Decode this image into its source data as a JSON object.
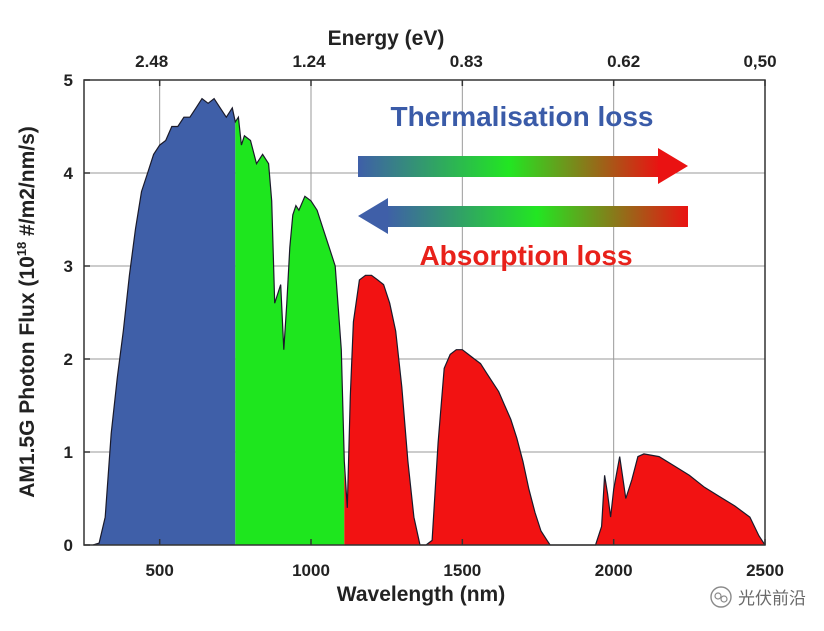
{
  "chart_data": {
    "type": "area",
    "title": "",
    "xlabel": "Wavelength (nm)",
    "ylabel_main": "AM1.5G Photon Flux (10",
    "ylabel_sup": "18",
    "ylabel_unit": " #/m2/nm/s)",
    "top_axis_label": "Energy (eV)",
    "xlim": [
      250,
      2500
    ],
    "ylim": [
      0,
      5
    ],
    "x_ticks": [
      500,
      1000,
      1500,
      2000,
      2500
    ],
    "x_tick_labels": [
      "500",
      "1000",
      "1500",
      "2000",
      "2500"
    ],
    "y_ticks": [
      0,
      1,
      2,
      3,
      4,
      5
    ],
    "y_tick_labels": [
      "0",
      "1",
      "2",
      "3",
      "4",
      "5"
    ],
    "top_ticks": [
      {
        "label": "2.48",
        "wavelength": 500
      },
      {
        "label": "1.24",
        "wavelength": 1000
      },
      {
        "label": "0.83",
        "wavelength": 1500
      },
      {
        "label": "0.62",
        "wavelength": 2000
      },
      {
        "label": "0,50",
        "wavelength": 2500
      }
    ],
    "grid": true,
    "regions": [
      {
        "name": "thermalisation-region",
        "color": "#3f5fa8",
        "x_range": [
          280,
          750
        ]
      },
      {
        "name": "usable-region",
        "color": "#1ee61e",
        "x_range": [
          750,
          1110
        ]
      },
      {
        "name": "absorption-region",
        "color": "#f21212",
        "x_range": [
          1110,
          2500
        ]
      }
    ],
    "spectrum": {
      "x": [
        280,
        300,
        320,
        340,
        360,
        380,
        400,
        420,
        440,
        460,
        480,
        500,
        520,
        540,
        560,
        580,
        600,
        620,
        640,
        660,
        680,
        700,
        720,
        740,
        750,
        760,
        770,
        780,
        800,
        820,
        840,
        860,
        870,
        880,
        900,
        910,
        920,
        930,
        940,
        950,
        960,
        980,
        1000,
        1020,
        1040,
        1060,
        1080,
        1100,
        1110,
        1120,
        1130,
        1140,
        1160,
        1180,
        1200,
        1220,
        1240,
        1260,
        1280,
        1300,
        1320,
        1340,
        1360,
        1380,
        1400,
        1420,
        1440,
        1460,
        1480,
        1500,
        1520,
        1540,
        1560,
        1580,
        1600,
        1620,
        1640,
        1660,
        1680,
        1700,
        1720,
        1740,
        1760,
        1780,
        1790,
        1800,
        1820,
        1900,
        1940,
        1960,
        1970,
        1980,
        1990,
        2000,
        2020,
        2040,
        2060,
        2080,
        2100,
        2150,
        2200,
        2250,
        2300,
        2350,
        2400,
        2450,
        2480,
        2500
      ],
      "y": [
        0,
        0.02,
        0.3,
        1.2,
        1.8,
        2.3,
        2.9,
        3.4,
        3.8,
        4.0,
        4.2,
        4.3,
        4.35,
        4.5,
        4.5,
        4.6,
        4.6,
        4.7,
        4.8,
        4.75,
        4.8,
        4.7,
        4.6,
        4.7,
        4.55,
        4.6,
        4.3,
        4.4,
        4.35,
        4.1,
        4.2,
        4.1,
        3.7,
        2.6,
        2.8,
        2.1,
        2.6,
        3.2,
        3.55,
        3.65,
        3.6,
        3.75,
        3.7,
        3.6,
        3.4,
        3.2,
        3.0,
        2.1,
        0.9,
        0.4,
        1.6,
        2.4,
        2.85,
        2.9,
        2.9,
        2.85,
        2.8,
        2.6,
        2.3,
        1.7,
        0.9,
        0.3,
        0.0,
        0.0,
        0.05,
        1.1,
        1.9,
        2.05,
        2.1,
        2.1,
        2.05,
        2.0,
        1.95,
        1.85,
        1.75,
        1.65,
        1.5,
        1.35,
        1.15,
        0.9,
        0.6,
        0.35,
        0.15,
        0.05,
        0.0,
        0.0,
        0.0,
        0.0,
        0.0,
        0.2,
        0.75,
        0.55,
        0.3,
        0.6,
        0.95,
        0.5,
        0.7,
        0.95,
        0.98,
        0.95,
        0.85,
        0.75,
        0.62,
        0.52,
        0.42,
        0.3,
        0.1,
        0.0
      ]
    }
  },
  "annotations": {
    "thermalisation": {
      "label": "Thermalisation loss",
      "color": "#3a5ba8",
      "arrow_direction": "right"
    },
    "absorption": {
      "label": "Absorption loss",
      "color": "#e8211a",
      "arrow_direction": "left"
    }
  },
  "arrow_gradients": {
    "thermalisation": [
      "#3f5fa8",
      "#22e622",
      "#ea1212"
    ],
    "absorption": [
      "#3f5fa8",
      "#22e622",
      "#ea1212"
    ]
  },
  "watermark": {
    "text": "光伏前沿",
    "icon": "wechat-icon"
  }
}
